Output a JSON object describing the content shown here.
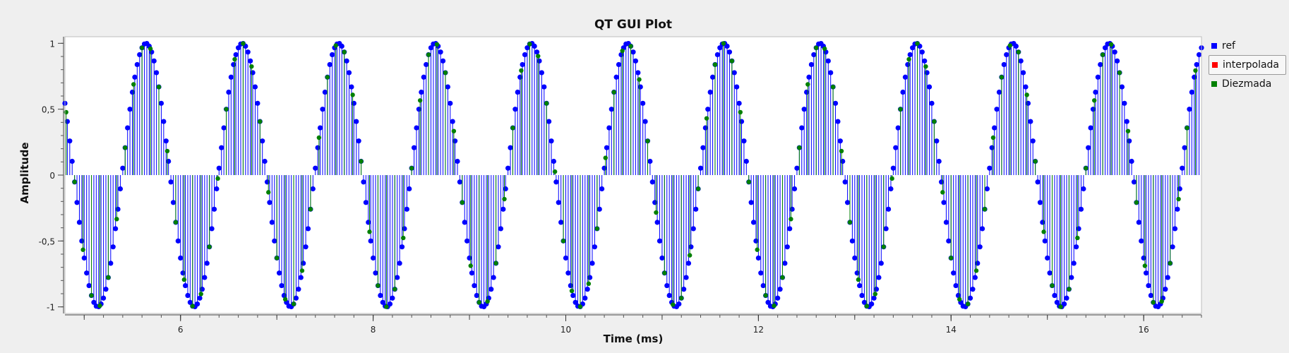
{
  "chart_data": {
    "type": "scatter",
    "title": "QT GUI Plot",
    "xlabel": "Time (ms)",
    "ylabel": "Amplitude",
    "xlim": [
      4.8,
      16.6
    ],
    "ylim": [
      -1.05,
      1.05
    ],
    "xticks": [
      6,
      8,
      10,
      12,
      14,
      16
    ],
    "xtick_labels": [
      "6",
      "8",
      "10",
      "12",
      "14",
      "16"
    ],
    "yticks": [
      -1,
      -0.5,
      0,
      0.5,
      1
    ],
    "ytick_labels": [
      "-1",
      "-0,5",
      "0",
      "0,5",
      "1"
    ],
    "grid": false,
    "legend_position": "right",
    "series": [
      {
        "name": "ref",
        "color": "#0000ff",
        "style": "stem",
        "signal": "sine",
        "frequency_khz": 1.0,
        "phase_deg": 219,
        "sample_period_ms": 0.025,
        "amplitude": 1
      },
      {
        "name": "interpolada",
        "color": "#ff0000",
        "style": "stem",
        "visible": false
      },
      {
        "name": "Diezmada",
        "color": "#008000",
        "style": "stem",
        "signal": "sine",
        "frequency_khz": 1.0,
        "phase_deg": 219,
        "sample_period_ms": 0.0875,
        "amplitude": 1
      }
    ]
  },
  "legend": {
    "items": [
      {
        "label": "ref",
        "color": "#0000ff"
      },
      {
        "label": "interpolada",
        "color": "#ff0000"
      },
      {
        "label": "Diezmada",
        "color": "#008000"
      }
    ]
  }
}
